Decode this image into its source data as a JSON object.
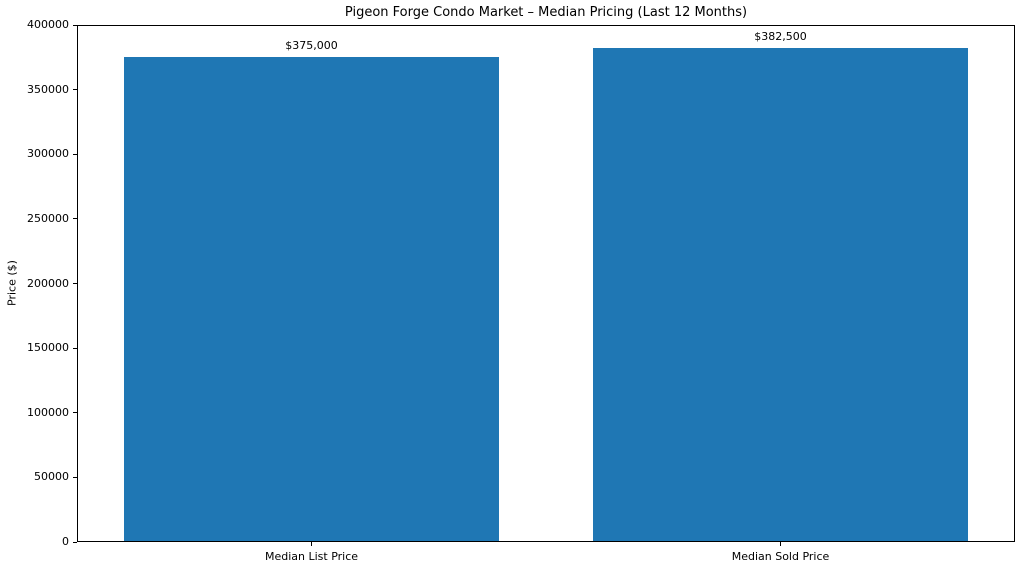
{
  "chart_data": {
    "type": "bar",
    "title": "Pigeon Forge Condo Market – Median Pricing (Last 12 Months)",
    "xlabel": "",
    "ylabel": "Price ($)",
    "categories": [
      "Median List Price",
      "Median Sold Price"
    ],
    "values": [
      375000,
      382500
    ],
    "value_labels": [
      "$375,000",
      "$382,500"
    ],
    "ylim": [
      0,
      400000
    ],
    "yticks": [
      0,
      50000,
      100000,
      150000,
      200000,
      250000,
      300000,
      350000,
      400000
    ],
    "ytick_labels": [
      "0",
      "50000",
      "100000",
      "150000",
      "200000",
      "250000",
      "300000",
      "350000",
      "400000"
    ],
    "bar_color": "#1f77b4",
    "bar_width_fraction": 0.8,
    "grid": false,
    "legend": "none",
    "spine_color": "#000000",
    "background_color": "#ffffff"
  }
}
